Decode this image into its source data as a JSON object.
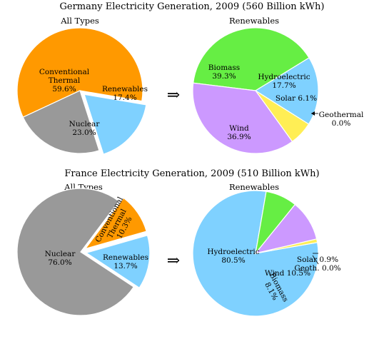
{
  "chart_data": [
    {
      "type": "pie",
      "title": "Germany Electricity Generation, 2009 (560 Billion kWh)",
      "panels": [
        {
          "subtitle": "All Types",
          "slices": [
            {
              "label": [
                "Conventional",
                "Thermal",
                "59.6%"
              ],
              "value": 59.6,
              "color": "#ff9900"
            },
            {
              "label": [
                "Renewables",
                "17.4%"
              ],
              "value": 17.4,
              "color": "#7fd1ff",
              "exploded": true
            },
            {
              "label": [
                "Nuclear",
                "23.0%"
              ],
              "value": 23.0,
              "color": "#999999"
            }
          ]
        },
        {
          "subtitle": "Renewables",
          "slices": [
            {
              "label": [
                "Biomass",
                "39.3%"
              ],
              "value": 39.3,
              "color": "#66ee44"
            },
            {
              "label": [
                "Hydroelectric",
                "17.7%"
              ],
              "value": 17.7,
              "color": "#7fd1ff"
            },
            {
              "label": [
                "Solar 6.1%"
              ],
              "value": 6.1,
              "color": "#ffee55"
            },
            {
              "label": [
                "Geothermal",
                "0.0%"
              ],
              "value": 0.0,
              "color": "#ffffff",
              "callout": true
            },
            {
              "label": [
                "Wind",
                "36.9%"
              ],
              "value": 36.9,
              "color": "#cc99ff"
            }
          ]
        }
      ]
    },
    {
      "type": "pie",
      "title": "France Electricity Generation, 2009 (510 Billion kWh)",
      "panels": [
        {
          "subtitle": "All Types",
          "slices": [
            {
              "label": [
                "Conventional",
                "Thermal",
                "10.3%"
              ],
              "value": 10.3,
              "color": "#ff9900",
              "exploded": true
            },
            {
              "label": [
                "Renewables",
                "13.7%"
              ],
              "value": 13.7,
              "color": "#7fd1ff",
              "exploded": true
            },
            {
              "label": [
                "Nuclear",
                "76.0%"
              ],
              "value": 76.0,
              "color": "#999999"
            }
          ]
        },
        {
          "subtitle": "Renewables",
          "slices": [
            {
              "label": [
                "Hydroelectric",
                "80.5%"
              ],
              "value": 80.5,
              "color": "#7fd1ff"
            },
            {
              "label": [
                "Biomass",
                "8.1%"
              ],
              "value": 8.1,
              "color": "#66ee44"
            },
            {
              "label": [
                "Wind  10.5%"
              ],
              "value": 10.5,
              "color": "#cc99ff"
            },
            {
              "label": [
                "Solar  0.9%"
              ],
              "value": 0.9,
              "color": "#ffee55"
            },
            {
              "label": [
                "Geoth.  0.0%"
              ],
              "value": 0.0,
              "color": "#ffffff"
            }
          ]
        }
      ]
    }
  ],
  "arrow_glyph": "⇒"
}
